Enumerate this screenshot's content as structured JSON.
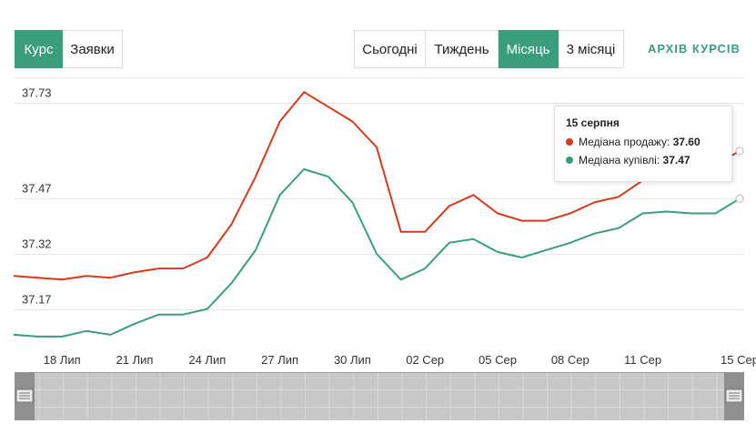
{
  "mode_tabs": [
    {
      "label": "Курс",
      "active": true
    },
    {
      "label": "Заявки",
      "active": false
    }
  ],
  "period_tabs": [
    {
      "label": "Сьогодні",
      "active": false
    },
    {
      "label": "Тиждень",
      "active": false
    },
    {
      "label": "Місяць",
      "active": true
    },
    {
      "label": "3 місяці",
      "active": false
    }
  ],
  "archive_link": "АРХІВ КУРСІВ",
  "colors": {
    "accent": "#3a9e7d",
    "sell": "#d7391d",
    "buy": "#3a9e7d"
  },
  "tooltip": {
    "date": "15 серпня",
    "sell_label": "Медіана продажу: ",
    "sell_value": "37.60",
    "buy_label": "Медіана купівлі: ",
    "buy_value": "37.47"
  },
  "chart_data": {
    "type": "line",
    "x": [
      "16 Лип",
      "17 Лип",
      "18 Лип",
      "19 Лип",
      "20 Лип",
      "21 Лип",
      "22 Лип",
      "23 Лип",
      "24 Лип",
      "25 Лип",
      "26 Лип",
      "27 Лип",
      "28 Лип",
      "29 Лип",
      "30 Лип",
      "31 Лип",
      "01 Сер",
      "02 Сер",
      "03 Сер",
      "04 Сер",
      "05 Сер",
      "06 Сер",
      "07 Сер",
      "08 Сер",
      "09 Сер",
      "10 Сер",
      "11 Сер",
      "12 Сер",
      "13 Сер",
      "14 Сер",
      "15 Сер"
    ],
    "x_tick_labels": [
      "18 Лип",
      "21 Лип",
      "24 Лип",
      "27 Лип",
      "30 Лип",
      "02 Сер",
      "05 Сер",
      "08 Сер",
      "11 Сер",
      "15 Сер"
    ],
    "y_tick_labels": [
      "37.73",
      "37.47",
      "37.32",
      "37.17"
    ],
    "series": [
      {
        "name": "Медіана продажу",
        "color": "#d7391d",
        "values": [
          37.26,
          37.255,
          37.25,
          37.26,
          37.255,
          37.27,
          37.28,
          37.28,
          37.31,
          37.4,
          37.53,
          37.68,
          37.76,
          37.72,
          37.68,
          37.61,
          37.38,
          37.38,
          37.45,
          37.48,
          37.43,
          37.41,
          37.41,
          37.43,
          37.46,
          37.475,
          37.52,
          37.55,
          37.53,
          37.56,
          37.6
        ]
      },
      {
        "name": "Медіана купівлі",
        "color": "#3a9e7d",
        "values": [
          37.1,
          37.095,
          37.095,
          37.11,
          37.1,
          37.13,
          37.155,
          37.155,
          37.17,
          37.24,
          37.33,
          37.48,
          37.55,
          37.53,
          37.46,
          37.32,
          37.25,
          37.28,
          37.35,
          37.36,
          37.325,
          37.31,
          37.33,
          37.35,
          37.375,
          37.39,
          37.43,
          37.435,
          37.43,
          37.43,
          37.47
        ]
      }
    ],
    "ylim": [
      37.07,
      37.8
    ],
    "grid": true,
    "legend": "none"
  }
}
